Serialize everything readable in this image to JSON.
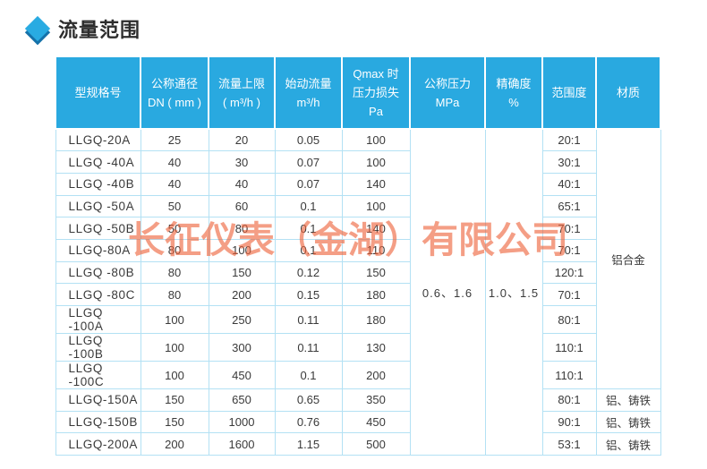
{
  "page": {
    "title": "流量范围"
  },
  "colors": {
    "header_bg": "#29a9e0",
    "grid_line": "#b3e1f4",
    "diamond_blue": "#29abe2",
    "diamond_shadow": "#1572aa",
    "watermark": "#ee623a",
    "title_text": "#2d2d2d",
    "body_text": "#3a3a3a"
  },
  "watermark": {
    "text": "长征仪表（金湖）有限公司"
  },
  "table": {
    "headers": {
      "model": [
        "型规格号"
      ],
      "dn": [
        "公称通径",
        "DN ( mm )"
      ],
      "max_flow": [
        "流量上限",
        "( m³/h )"
      ],
      "start_flow": [
        "始动流量",
        "m³/h"
      ],
      "pressure_loss": [
        "Qmax 时",
        "压力损失",
        "Pa"
      ],
      "nominal_pressure": [
        "公称压力",
        "MPa"
      ],
      "accuracy": [
        "精确度",
        "%"
      ],
      "range": [
        "范围度"
      ],
      "material": [
        "材质"
      ]
    },
    "merged": {
      "nominal_pressure": "0.6、1.6",
      "accuracy": "1.0、1.5",
      "material_main": "铝合金",
      "material_main_rowspan": 11
    },
    "rows": [
      {
        "model": "LLGQ-20A",
        "dn": "25",
        "max_flow": "20",
        "start_flow": "0.05",
        "pressure_loss": "100",
        "range": "20:1"
      },
      {
        "model": "LLGQ -40A",
        "dn": "40",
        "max_flow": "30",
        "start_flow": "0.07",
        "pressure_loss": "100",
        "range": "30:1"
      },
      {
        "model": "LLGQ -40B",
        "dn": "40",
        "max_flow": "40",
        "start_flow": "0.07",
        "pressure_loss": "140",
        "range": "40:1"
      },
      {
        "model": "LLGQ -50A",
        "dn": "50",
        "max_flow": "60",
        "start_flow": "0.1",
        "pressure_loss": "100",
        "range": "65:1"
      },
      {
        "model": "LLGQ -50B",
        "dn": "50",
        "max_flow": "80",
        "start_flow": "0.1",
        "pressure_loss": "140",
        "range": "70:1"
      },
      {
        "model": "LLGQ-80A",
        "dn": "80",
        "max_flow": "100",
        "start_flow": "0.1",
        "pressure_loss": "110",
        "range": "70:1"
      },
      {
        "model": "LLGQ -80B",
        "dn": "80",
        "max_flow": "150",
        "start_flow": "0.12",
        "pressure_loss": "150",
        "range": "120:1"
      },
      {
        "model": "LLGQ -80C",
        "dn": "80",
        "max_flow": "200",
        "start_flow": "0.15",
        "pressure_loss": "180",
        "range": "70:1"
      },
      {
        "model": "LLGQ -100A",
        "dn": "100",
        "max_flow": "250",
        "start_flow": "0.11",
        "pressure_loss": "180",
        "range": "80:1"
      },
      {
        "model": "LLGQ -100B",
        "dn": "100",
        "max_flow": "300",
        "start_flow": "0.11",
        "pressure_loss": "130",
        "range": "110:1"
      },
      {
        "model": "LLGQ -100C",
        "dn": "100",
        "max_flow": "450",
        "start_flow": "0.1",
        "pressure_loss": "200",
        "range": "110:1"
      },
      {
        "model": "LLGQ-150A",
        "dn": "150",
        "max_flow": "650",
        "start_flow": "0.65",
        "pressure_loss": "350",
        "range": "80:1",
        "material": "铝、铸铁"
      },
      {
        "model": "LLGQ-150B",
        "dn": "150",
        "max_flow": "1000",
        "start_flow": "0.76",
        "pressure_loss": "450",
        "range": "90:1",
        "material": "铝、铸铁"
      },
      {
        "model": "LLGQ-200A",
        "dn": "200",
        "max_flow": "1600",
        "start_flow": "1.15",
        "pressure_loss": "500",
        "range": "53:1",
        "material": "铝、铸铁"
      }
    ]
  }
}
